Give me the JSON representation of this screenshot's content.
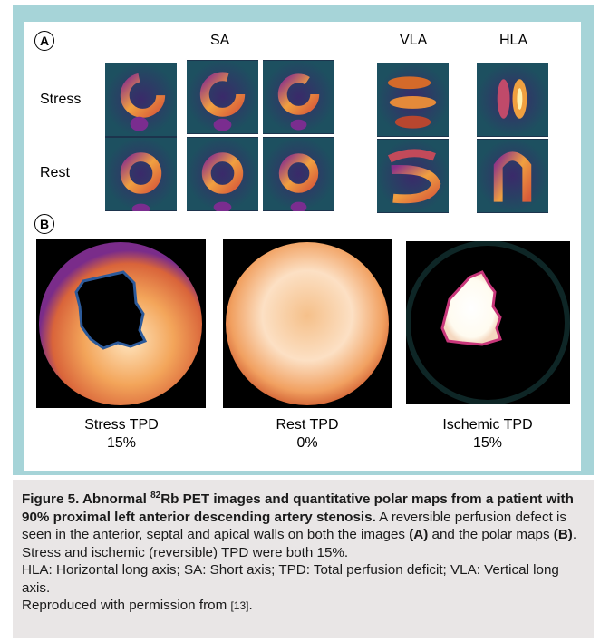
{
  "panel_a": {
    "badge": "A",
    "col_labels": {
      "sa": "SA",
      "vla": "VLA",
      "hla": "HLA"
    },
    "row_labels": {
      "stress": "Stress",
      "rest": "Rest"
    }
  },
  "panel_b": {
    "badge": "B",
    "maps": [
      {
        "label": "Stress TPD",
        "value": "15%"
      },
      {
        "label": "Rest TPD",
        "value": "0%"
      },
      {
        "label": "Ischemic TPD",
        "value": "15%"
      }
    ]
  },
  "caption": {
    "title_prefix": "Figure 5. Abnormal ",
    "title_sup": "82",
    "title_rest": "Rb PET images and quantitative polar maps from a patient with 90% proximal left anterior descending artery stenosis.",
    "sentence1_pre": " A reversible perfusion defect is seen in the anterior, septal and apical walls on both the images ",
    "ref_a": "(A)",
    "sentence1_mid": " and the polar maps ",
    "ref_b": "(B)",
    "sentence1_post": ". Stress and ischemic (reversible) TPD were both 15%.",
    "abbrev": "HLA: Horizontal long axis; SA: Short axis; TPD: Total perfusion deficit; VLA: Vertical long axis.",
    "repro_pre": "Reproduced with permission from ",
    "repro_ref": "[13]",
    "repro_post": "."
  }
}
